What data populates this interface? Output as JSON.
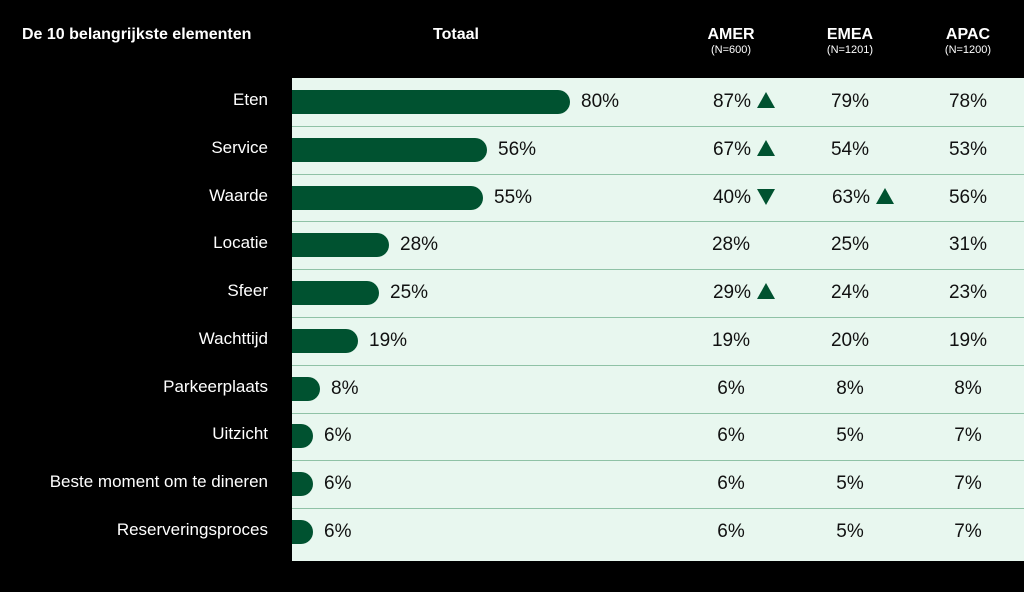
{
  "header": {
    "title": "De 10 belangrijkste elementen",
    "total_label": "Totaal",
    "regions": [
      {
        "name": "AMER",
        "n": "(N=600)"
      },
      {
        "name": "EMEA",
        "n": "(N=1201)"
      },
      {
        "name": "APAC",
        "n": "(N=1200)"
      }
    ]
  },
  "colors": {
    "bar": "#005230",
    "panel": "#e8f7ef",
    "background": "#000000",
    "divider": "#8fc2a6"
  },
  "chart_data": {
    "type": "bar",
    "title": "De 10 belangrijkste elementen",
    "categories": [
      "Eten",
      "Service",
      "Waarde",
      "Locatie",
      "Sfeer",
      "Wachttijd",
      "Parkeerplaats",
      "Uitzicht",
      "Beste moment om te dineren",
      "Reserveringsproces"
    ],
    "series": [
      {
        "name": "Totaal",
        "values": [
          80,
          56,
          55,
          28,
          25,
          19,
          8,
          6,
          6,
          6
        ]
      }
    ],
    "value_labels": [
      "80%",
      "56%",
      "55%",
      "28%",
      "25%",
      "19%",
      "8%",
      "6%",
      "6%",
      "6%"
    ],
    "ylim": [
      0,
      100
    ],
    "region_table": {
      "columns": [
        "AMER",
        "EMEA",
        "APAC"
      ],
      "rows": [
        [
          {
            "v": "87%",
            "a": "up"
          },
          {
            "v": "79%",
            "a": ""
          },
          {
            "v": "78%",
            "a": ""
          }
        ],
        [
          {
            "v": "67%",
            "a": "up"
          },
          {
            "v": "54%",
            "a": ""
          },
          {
            "v": "53%",
            "a": ""
          }
        ],
        [
          {
            "v": "40%",
            "a": "down"
          },
          {
            "v": "63%",
            "a": "up"
          },
          {
            "v": "56%",
            "a": ""
          }
        ],
        [
          {
            "v": "28%",
            "a": ""
          },
          {
            "v": "25%",
            "a": ""
          },
          {
            "v": "31%",
            "a": ""
          }
        ],
        [
          {
            "v": "29%",
            "a": "up"
          },
          {
            "v": "24%",
            "a": ""
          },
          {
            "v": "23%",
            "a": ""
          }
        ],
        [
          {
            "v": "19%",
            "a": ""
          },
          {
            "v": "20%",
            "a": ""
          },
          {
            "v": "19%",
            "a": ""
          }
        ],
        [
          {
            "v": "6%",
            "a": ""
          },
          {
            "v": "8%",
            "a": ""
          },
          {
            "v": "8%",
            "a": ""
          }
        ],
        [
          {
            "v": "6%",
            "a": ""
          },
          {
            "v": "5%",
            "a": ""
          },
          {
            "v": "7%",
            "a": ""
          }
        ],
        [
          {
            "v": "6%",
            "a": ""
          },
          {
            "v": "5%",
            "a": ""
          },
          {
            "v": "7%",
            "a": ""
          }
        ],
        [
          {
            "v": "6%",
            "a": ""
          },
          {
            "v": "5%",
            "a": ""
          },
          {
            "v": "7%",
            "a": ""
          }
        ]
      ]
    }
  }
}
